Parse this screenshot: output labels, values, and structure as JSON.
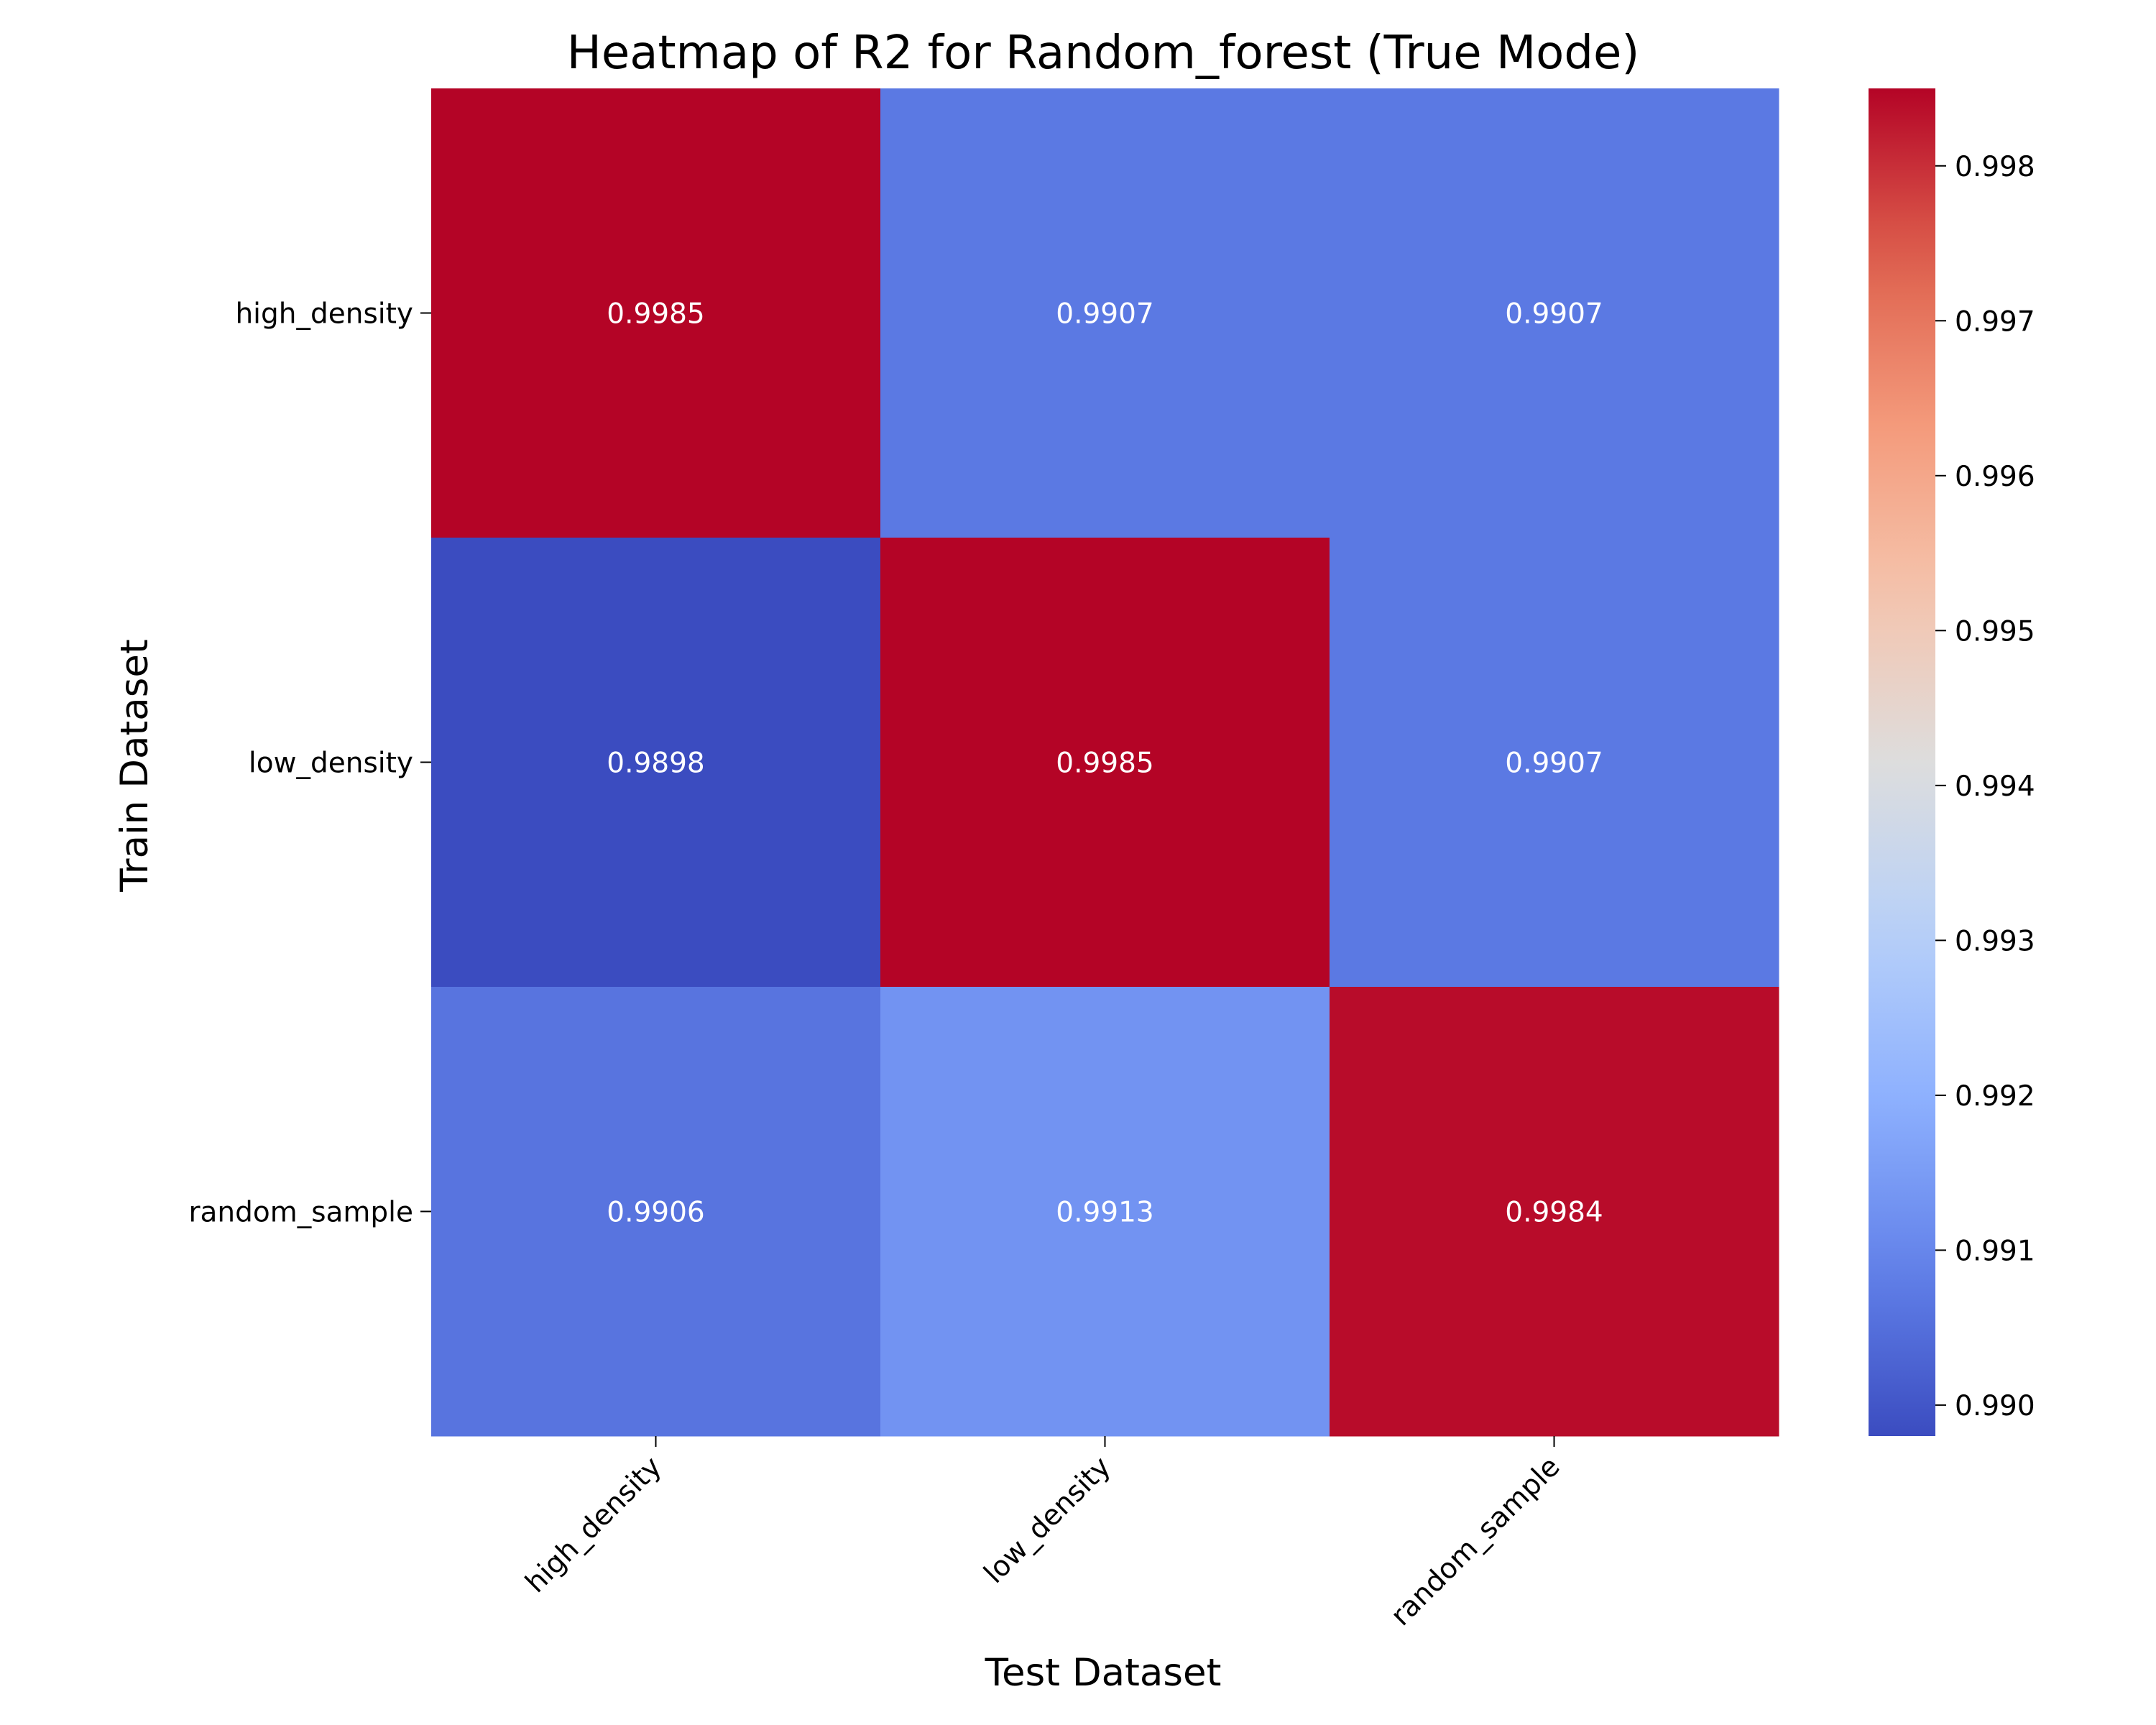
{
  "chart_data": {
    "type": "heatmap",
    "title": "Heatmap of R2 for Random_forest (True Mode)",
    "xlabel": "Test Dataset",
    "ylabel": "Train Dataset",
    "x_categories": [
      "high_density",
      "low_density",
      "random_sample"
    ],
    "y_categories": [
      "high_density",
      "low_density",
      "random_sample"
    ],
    "values": [
      [
        0.9985,
        0.9907,
        0.9907
      ],
      [
        0.9898,
        0.9985,
        0.9907
      ],
      [
        0.9906,
        0.9913,
        0.9984
      ]
    ],
    "cell_labels": [
      [
        "0.9985",
        "0.9907",
        "0.9907"
      ],
      [
        "0.9898",
        "0.9985",
        "0.9907"
      ],
      [
        "0.9906",
        "0.9913",
        "0.9984"
      ]
    ],
    "colormap": "coolwarm",
    "color_range": [
      0.9898,
      0.9985
    ],
    "colorbar": {
      "ticks": [
        0.99,
        0.991,
        0.992,
        0.993,
        0.994,
        0.995,
        0.996,
        0.997,
        0.998
      ],
      "tick_labels": [
        "0.990",
        "0.991",
        "0.992",
        "0.993",
        "0.994",
        "0.995",
        "0.996",
        "0.997",
        "0.998"
      ]
    },
    "grid": false
  }
}
